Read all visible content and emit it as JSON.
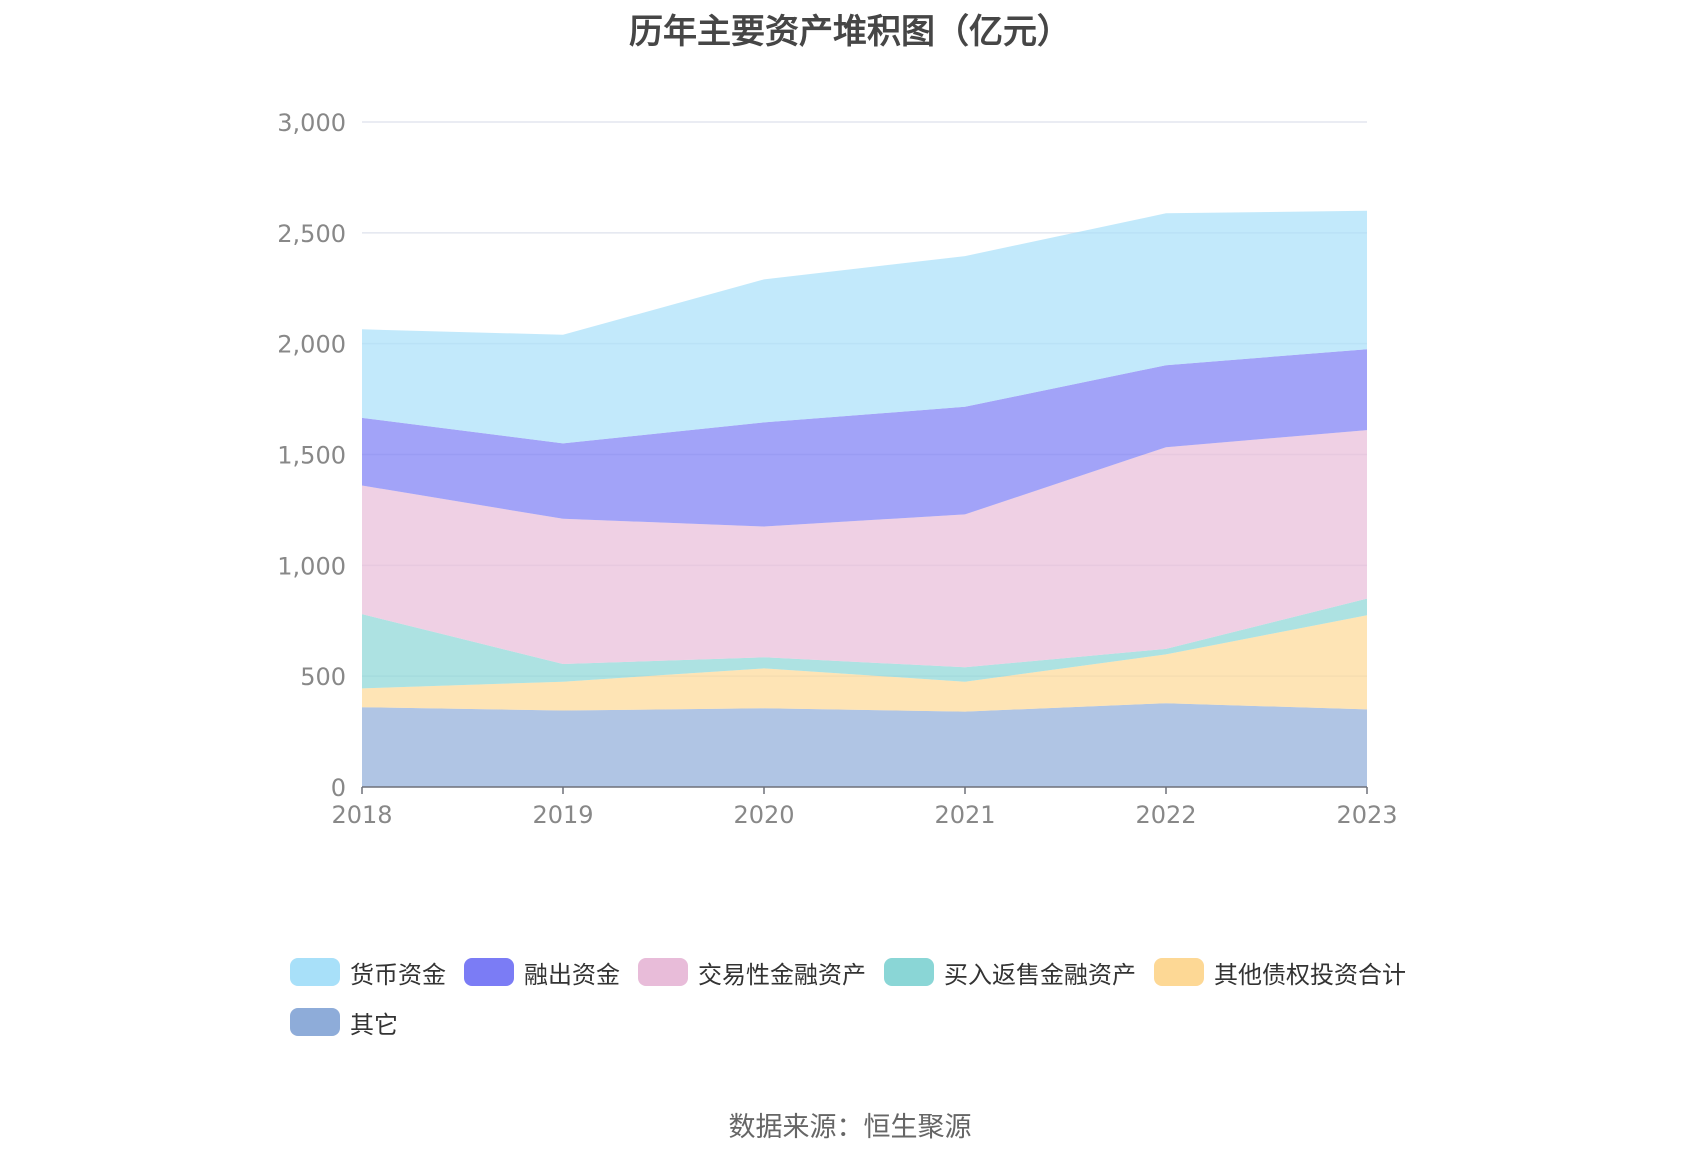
{
  "chart_data": {
    "type": "area",
    "stacked": true,
    "title": "历年主要资产堆积图（亿元）",
    "x": [
      "2018",
      "2019",
      "2020",
      "2021",
      "2022",
      "2023"
    ],
    "ylim": [
      0,
      3000
    ],
    "yticks": [
      0,
      500,
      1000,
      1500,
      2000,
      2500,
      3000
    ],
    "ytick_labels": [
      "0",
      "500",
      "1,000",
      "1,500",
      "2,000",
      "2,500",
      "3,000"
    ],
    "grid": true,
    "legend_position": "bottom",
    "series": [
      {
        "name": "其它",
        "color": "#8eacd9",
        "values": [
          360,
          345,
          355,
          340,
          378,
          350
        ]
      },
      {
        "name": "其他债权投资合计",
        "color": "#fdd895",
        "values": [
          85,
          130,
          180,
          135,
          220,
          425
        ]
      },
      {
        "name": "买入返售金融资产",
        "color": "#8ad6d6",
        "values": [
          335,
          80,
          50,
          65,
          25,
          75
        ]
      },
      {
        "name": "交易性金融资产",
        "color": "#e8bcd9",
        "values": [
          580,
          655,
          590,
          690,
          910,
          760
        ]
      },
      {
        "name": "融出资金",
        "color": "#7b7cf5",
        "values": [
          305,
          340,
          470,
          485,
          370,
          365
        ]
      },
      {
        "name": "货币资金",
        "color": "#a8e0f9",
        "values": [
          400,
          490,
          645,
          680,
          685,
          625
        ]
      }
    ]
  },
  "legend_order": [
    "货币资金",
    "融出资金",
    "交易性金融资产",
    "买入返售金融资产",
    "其他债权投资合计",
    "其它"
  ],
  "source_note": "数据来源：恒生聚源"
}
